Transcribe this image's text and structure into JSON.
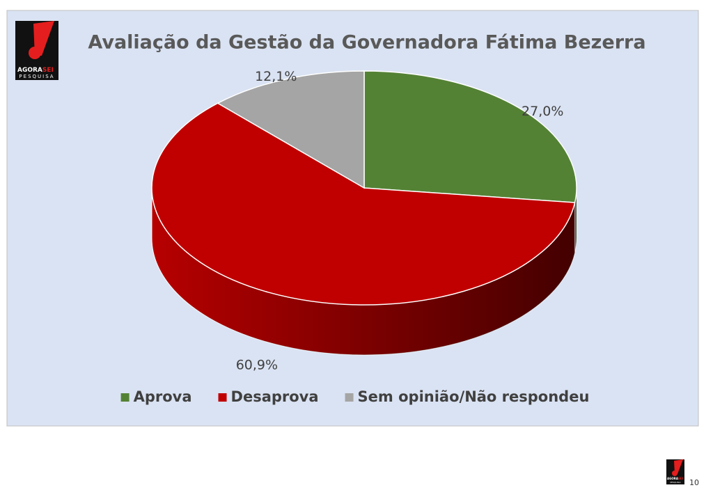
{
  "chart_data": {
    "type": "pie",
    "title": "Avaliação da Gestão da Governadora Fátima Bezerra",
    "categories": [
      "Aprova",
      "Desaprova",
      "Sem opinião/Não respondeu"
    ],
    "values": [
      27.0,
      60.9,
      12.1
    ],
    "value_labels": [
      "27,0%",
      "60,9%",
      "12,1%"
    ],
    "colors": [
      "#548235",
      "#c00000",
      "#a5a5a5"
    ],
    "legend": "bottom"
  },
  "logo": {
    "brand": [
      "AGORA",
      "SEI"
    ],
    "tagline": "PESQUISA"
  },
  "page_number": 10
}
